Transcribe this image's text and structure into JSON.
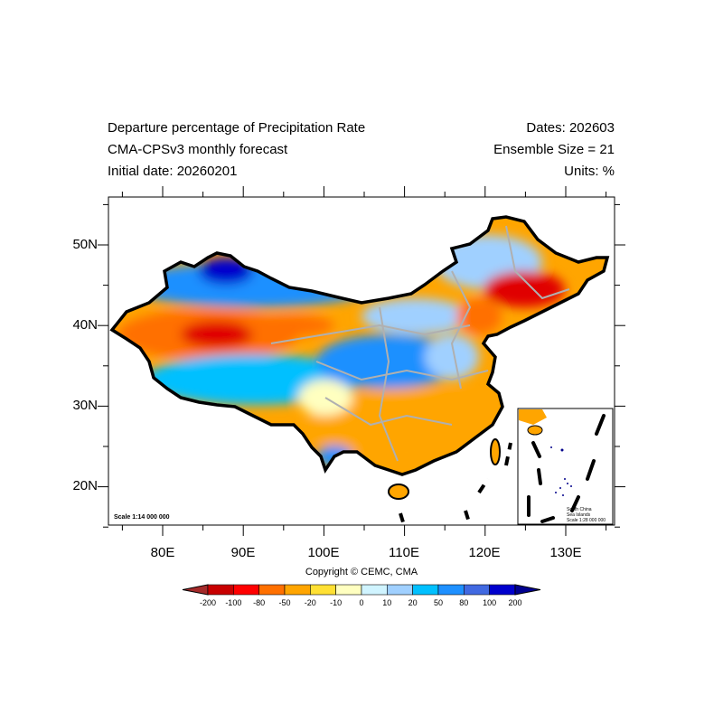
{
  "header": {
    "title_left": [
      "Departure percentage of Precipitation Rate",
      "CMA-CPSv3 monthly forecast",
      "Initial date: 20260201"
    ],
    "title_right": [
      "Dates: 202603",
      "Ensemble Size = 21",
      "Units: %"
    ]
  },
  "map": {
    "lat_labels": [
      "50N",
      "40N",
      "30N",
      "20N"
    ],
    "lon_labels": [
      "80E",
      "90E",
      "100E",
      "110E",
      "120E",
      "130E"
    ],
    "scale_main": "Scale 1:14 000 000",
    "inset_labels": [
      "South China",
      "Sea Islands",
      "Scale 1:28 000 000"
    ]
  },
  "copyright": "Copyright © CEMC, CMA",
  "colorbar": {
    "labels": [
      "-200",
      "-100",
      "-80",
      "-50",
      "-20",
      "-10",
      "0",
      "10",
      "20",
      "50",
      "80",
      "100",
      "200"
    ],
    "colors": [
      "#a52a2a",
      "#c80000",
      "#ff0000",
      "#ff7000",
      "#ffa500",
      "#ffe033",
      "#ffffc0",
      "#d0f4ff",
      "#a0d0ff",
      "#00c0ff",
      "#1e90ff",
      "#4169e1",
      "#0000cd",
      "#000090"
    ]
  }
}
